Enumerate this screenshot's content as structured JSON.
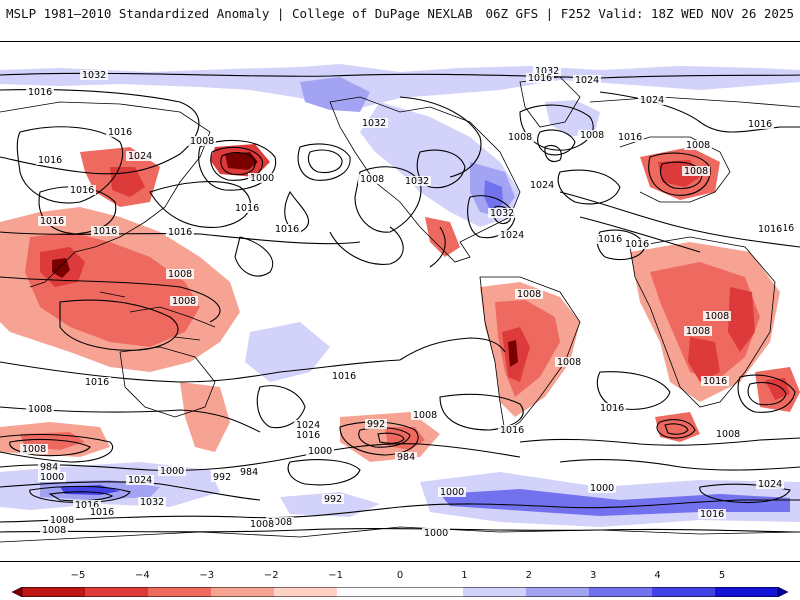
{
  "header": {
    "left_title": "MSLP 1981–2010 Standardized Anomaly | College of DuPage NEXLAB",
    "right_title": "06Z GFS | F252 Valid: 18Z WED NOV 26 2025"
  },
  "map": {
    "contour_labels": [
      "1032",
      "1016",
      "1016",
      "1016",
      "1024",
      "1016",
      "1016",
      "1016",
      "1008",
      "1008",
      "1008",
      "1016",
      "1000",
      "1016",
      "1008",
      "1032",
      "1016",
      "1032",
      "1024",
      "1032",
      "1024",
      "1008",
      "1024",
      "1032",
      "1008",
      "1016",
      "1008",
      "1008",
      "1016",
      "1024",
      "1016",
      "1016",
      "1016",
      "1016",
      "1008",
      "1016",
      "1008",
      "1008",
      "1008",
      "1016",
      "1016",
      "1008",
      "1016",
      "1016",
      "1016",
      "1008",
      "1024",
      "1016",
      "1000",
      "992",
      "1008",
      "984",
      "1008",
      "1000",
      "984",
      "992",
      "1000",
      "984",
      "1032",
      "1008",
      "1016",
      "1008",
      "1024",
      "1016",
      "1000",
      "1008",
      "992",
      "1000",
      "1000",
      "1008",
      "1024",
      "1016"
    ],
    "colors": {
      "ocean": "#ffffff",
      "coast": "#000000",
      "contour": "#000000"
    }
  },
  "colorbar": {
    "ticks": [
      "−5",
      "−4",
      "−3",
      "−2",
      "−1",
      "0",
      "1",
      "2",
      "3",
      "4",
      "5"
    ],
    "colors": [
      "#7a0000",
      "#c01515",
      "#dd3b3b",
      "#ee6a60",
      "#f7a394",
      "#ffd2c8",
      "#ffffff",
      "#ffffff",
      "#d2d2fa",
      "#a3a3f3",
      "#7272ee",
      "#4141e4",
      "#1414d6",
      "#0000a8"
    ]
  }
}
